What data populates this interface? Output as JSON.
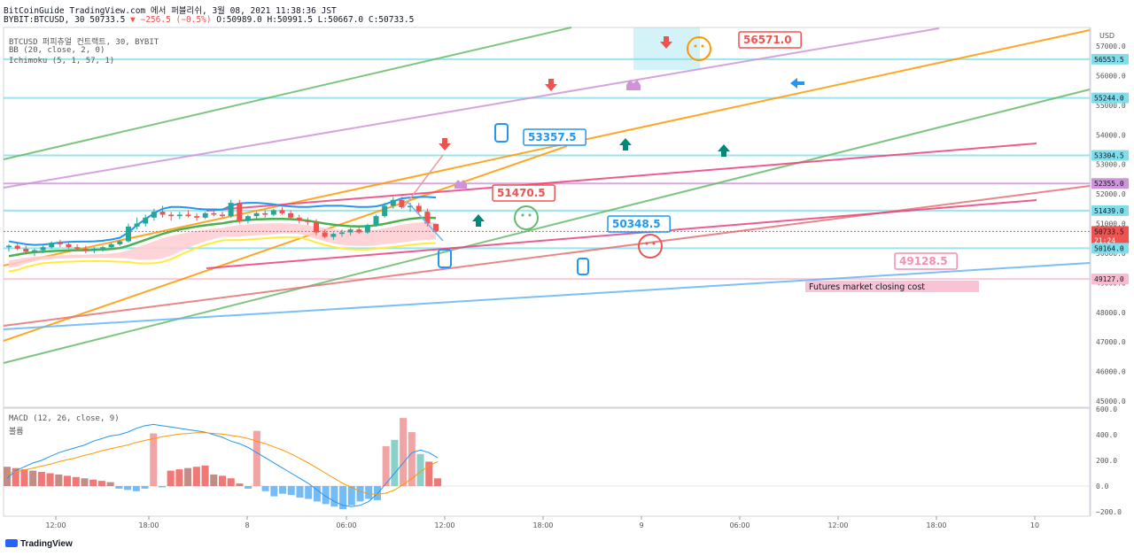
{
  "header": {
    "line1": "BitCoinGuide TradingView.com 에서 퍼블리쉬, 3월 08, 2021 11:38:36 JST",
    "symbol": "BYBIT:BTCUSD, 30",
    "price": "50733.5",
    "change": "▼ −256.5 (−0.5%)",
    "ohlc": "O:50989.0 H:50991.5 L:50667.0 C:50733.5"
  },
  "legend": {
    "title": "BTCUSD 퍼피츄얼 컨트랙트, 30, BYBIT",
    "bb": "BB (20, close, 2, 0)",
    "ichimoku": "Ichimoku (5, 1, 57, 1)",
    "macd": "MACD (12, 26, close, 9)",
    "macd_sub": "볼륨"
  },
  "brand": "TradingView",
  "colors": {
    "up": "#26a69a",
    "down": "#ef5350",
    "cyan": "#80deea",
    "blue": "#2196f3",
    "bb_mid": "#4caf50",
    "yellow": "#ffeb3b",
    "cloud": "#ffcdd2",
    "orange": "#ff9800",
    "green": "#66bb6a",
    "pink": "#e91e63",
    "lavender": "#ce93d8",
    "lightblue": "#64b5f6"
  },
  "chart_data": [
    {
      "type": "line",
      "title": "BTCUSD 퍼피츄얼 컨트랙트, 30, BYBIT",
      "y_axis": "USD",
      "ylim": [
        45000,
        57500
      ],
      "yticks": [
        45000.0,
        46000.0,
        47000.0,
        48000.0,
        49000.0,
        50000.0,
        51000.0,
        52000.0,
        53000.0,
        54000.0,
        55000.0,
        56000.0,
        57000.0
      ],
      "xticks": [
        "12:00",
        "18:00",
        "8",
        "06:00",
        "12:00",
        "18:00",
        "9",
        "06:00",
        "12:00",
        "18:00",
        "10"
      ],
      "horizontal_levels": [
        56553.5,
        55244.0,
        53304.5,
        52355.0,
        51439.0,
        50164.0,
        49127.0
      ],
      "price_labels": [
        {
          "price": 56553.5,
          "text": "56553.5",
          "color": "#80deea"
        },
        {
          "price": 55244.0,
          "text": "55244.0",
          "color": "#80deea"
        },
        {
          "price": 53304.5,
          "text": "53304.5",
          "color": "#80deea"
        },
        {
          "price": 52355.0,
          "text": "52355.0",
          "color": "#ce93d8"
        },
        {
          "price": 51439.0,
          "text": "51439.0",
          "color": "#80deea"
        },
        {
          "price": 50733.5,
          "text": "50733.5",
          "color": "#ef5350",
          "extra": "21:24"
        },
        {
          "price": 50164.0,
          "text": "50164.0",
          "color": "#80deea"
        },
        {
          "price": 49127.0,
          "text": "49127.0",
          "color": "#f8bbd0"
        }
      ],
      "callouts": [
        {
          "text": "56571.0",
          "color": "#ef5350"
        },
        {
          "text": "53357.5",
          "color": "#2196f3"
        },
        {
          "text": "51470.5",
          "color": "#ef5350"
        },
        {
          "text": "50348.5",
          "color": "#2196f3"
        },
        {
          "text": "49128.5",
          "color": "#f48fb1"
        }
      ],
      "note": "Futures market closing cost",
      "candles": [
        [
          50200,
          50300,
          50050,
          50250
        ],
        [
          50250,
          50350,
          50100,
          50150
        ],
        [
          50150,
          50250,
          49950,
          50050
        ],
        [
          50050,
          50150,
          49900,
          50100
        ],
        [
          50100,
          50250,
          50000,
          50200
        ],
        [
          50200,
          50400,
          50150,
          50350
        ],
        [
          50350,
          50450,
          50200,
          50300
        ],
        [
          50300,
          50400,
          50150,
          50200
        ],
        [
          50200,
          50300,
          50100,
          50150
        ],
        [
          50150,
          50250,
          50000,
          50100
        ],
        [
          50100,
          50200,
          50000,
          50150
        ],
        [
          50150,
          50250,
          50050,
          50200
        ],
        [
          50200,
          50350,
          50150,
          50300
        ],
        [
          50300,
          50450,
          50250,
          50400
        ],
        [
          50400,
          51000,
          50350,
          50900
        ],
        [
          50900,
          51200,
          50800,
          51000
        ],
        [
          51000,
          51300,
          50900,
          51200
        ],
        [
          51200,
          51500,
          51100,
          51400
        ],
        [
          51400,
          51600,
          51200,
          51300
        ],
        [
          51300,
          51400,
          51100,
          51250
        ],
        [
          51250,
          51400,
          51150,
          51300
        ],
        [
          51300,
          51450,
          51200,
          51250
        ],
        [
          51250,
          51350,
          51100,
          51200
        ],
        [
          51200,
          51400,
          51150,
          51350
        ],
        [
          51350,
          51500,
          51250,
          51300
        ],
        [
          51300,
          51400,
          51200,
          51250
        ],
        [
          51250,
          51800,
          51200,
          51700
        ],
        [
          51700,
          51800,
          51000,
          51100
        ],
        [
          51100,
          51300,
          51000,
          51250
        ],
        [
          51250,
          51400,
          51150,
          51350
        ],
        [
          51350,
          51450,
          51200,
          51300
        ],
        [
          51300,
          51500,
          51250,
          51450
        ],
        [
          51450,
          51550,
          51300,
          51350
        ],
        [
          51350,
          51450,
          51150,
          51200
        ],
        [
          51200,
          51300,
          51000,
          51100
        ],
        [
          51100,
          51200,
          50950,
          51050
        ],
        [
          51050,
          51150,
          50600,
          50700
        ],
        [
          50700,
          50800,
          50500,
          50550
        ],
        [
          50550,
          50700,
          50450,
          50650
        ],
        [
          50650,
          50800,
          50550,
          50700
        ],
        [
          50700,
          50850,
          50600,
          50800
        ],
        [
          50800,
          50900,
          50650,
          50700
        ],
        [
          50700,
          51000,
          50650,
          50950
        ],
        [
          50950,
          51300,
          50900,
          51250
        ],
        [
          51250,
          51700,
          51200,
          51600
        ],
        [
          51600,
          51900,
          51500,
          51800
        ],
        [
          51800,
          51900,
          51500,
          51550
        ],
        [
          51550,
          51700,
          51400,
          51600
        ],
        [
          51600,
          51700,
          51300,
          51400
        ],
        [
          51400,
          51500,
          50900,
          51000
        ],
        [
          50989,
          50991.5,
          50667,
          50733.5
        ]
      ],
      "bb_upper": [
        50400,
        50350,
        50300,
        50280,
        50290,
        50320,
        50360,
        50380,
        50390,
        50390,
        50400,
        50420,
        50460,
        50520,
        50700,
        50950,
        51150,
        51350,
        51500,
        51560,
        51560,
        51540,
        51500,
        51480,
        51480,
        51470,
        51600,
        51680,
        51700,
        51700,
        51680,
        51650,
        51600,
        51580,
        51560,
        51560,
        51580,
        51600,
        51600,
        51600,
        51580,
        51560,
        51560,
        51580,
        51650,
        51750,
        51850,
        51880,
        51900,
        51900,
        51880
      ],
      "bb_mid": [
        49900,
        49950,
        50000,
        50030,
        50050,
        50070,
        50080,
        50090,
        50100,
        50100,
        50110,
        50120,
        50140,
        50170,
        50250,
        50350,
        50450,
        50550,
        50650,
        50730,
        50800,
        50850,
        50900,
        50940,
        50980,
        51010,
        51060,
        51100,
        51120,
        51140,
        51150,
        51160,
        51160,
        51150,
        51130,
        51100,
        51050,
        51000,
        50960,
        50930,
        50910,
        50900,
        50910,
        50940,
        50990,
        51050,
        51110,
        51160,
        51190,
        51200,
        51190
      ],
      "bb_lower": [
        49500,
        49550,
        49650,
        49720,
        49780,
        49800,
        49820,
        49830,
        49840,
        49850,
        49850,
        49850,
        49840,
        49830,
        49820,
        49780,
        49770,
        49780,
        49820,
        49920,
        50050,
        50180,
        50300,
        50400,
        50480,
        50550,
        50560,
        50560,
        50580,
        50600,
        50620,
        50640,
        50660,
        50660,
        50650,
        50580,
        50480,
        50400,
        50330,
        50280,
        50250,
        50240,
        50240,
        50270,
        50300,
        50330,
        50360,
        50400,
        50430,
        50450,
        50460
      ],
      "macd": [
        60,
        120,
        150,
        180,
        200,
        230,
        260,
        280,
        300,
        320,
        350,
        370,
        390,
        400,
        420,
        450,
        470,
        480,
        470,
        460,
        450,
        440,
        430,
        420,
        400,
        380,
        350,
        330,
        300,
        260,
        220,
        180,
        140,
        100,
        60,
        20,
        -30,
        -80,
        -120,
        -150,
        -160,
        -150,
        -120,
        -60,
        20,
        100,
        180,
        260,
        280,
        260,
        220
      ],
      "signal": [
        100,
        110,
        125,
        140,
        155,
        170,
        190,
        205,
        220,
        240,
        255,
        275,
        290,
        305,
        320,
        340,
        355,
        370,
        385,
        395,
        405,
        410,
        415,
        415,
        410,
        405,
        395,
        385,
        370,
        350,
        330,
        305,
        280,
        250,
        215,
        180,
        140,
        100,
        60,
        20,
        -10,
        -40,
        -60,
        -65,
        -55,
        -30,
        10,
        60,
        110,
        160,
        190
      ],
      "histogram": [
        150,
        140,
        130,
        120,
        110,
        100,
        90,
        80,
        70,
        60,
        50,
        40,
        30,
        -20,
        -30,
        -40,
        -20,
        410,
        -10,
        120,
        130,
        140,
        150,
        160,
        90,
        80,
        60,
        20,
        -20,
        430,
        -40,
        -80,
        -60,
        -70,
        -90,
        -100,
        -120,
        -140,
        -160,
        -180,
        -150,
        -120,
        -100,
        -110,
        310,
        360,
        530,
        420,
        250,
        190,
        60
      ]
    }
  ]
}
